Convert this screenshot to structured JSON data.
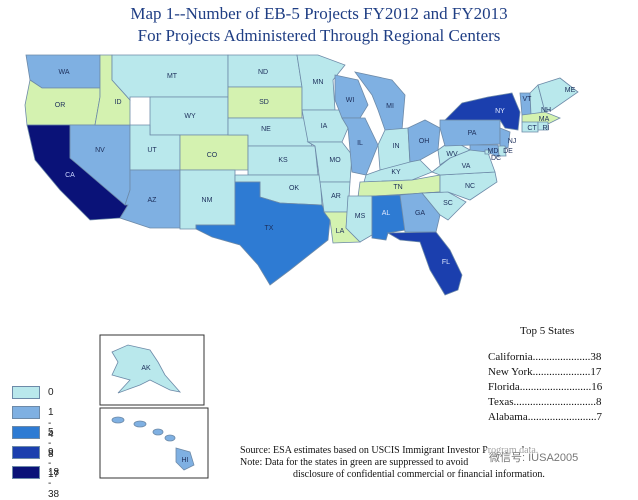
{
  "title_line1": "Map 1--Number of EB-5 Projects FY2012 and FY2013",
  "title_line2": "For Projects Administered Through Regional Centers",
  "legend": [
    {
      "label": "0",
      "color": "#b9e8ec"
    },
    {
      "label": "1 - 4",
      "color": "#7fb0e2"
    },
    {
      "label": "5 - 8",
      "color": "#2e7bd3"
    },
    {
      "label": "9 - 17",
      "color": "#1b3fae"
    },
    {
      "label": "18 - 38",
      "color": "#0a1278"
    }
  ],
  "suppressed_color": "#d4f2b0",
  "top5": {
    "header": "Top 5 States",
    "rows": [
      "California.....................38",
      "New York.....................17",
      "Florida..........................16",
      "Texas..............................8",
      "Alabama.........................7"
    ]
  },
  "source_line": "Source:  ESA estimates based on USCIS Immigrant Investor Program  data.",
  "note_line": "Note:     Data for the states in green are suppressed to avoid",
  "note_line2": "disclosure of confidential commercial or financial information.",
  "watermark": "微信号: IUSA2005",
  "states": [
    {
      "abbr": "WA"
    },
    {
      "abbr": "OR"
    },
    {
      "abbr": "CA"
    },
    {
      "abbr": "NV"
    },
    {
      "abbr": "ID"
    },
    {
      "abbr": "MT"
    },
    {
      "abbr": "WY"
    },
    {
      "abbr": "UT"
    },
    {
      "abbr": "AZ"
    },
    {
      "abbr": "CO"
    },
    {
      "abbr": "NM"
    },
    {
      "abbr": "ND"
    },
    {
      "abbr": "SD"
    },
    {
      "abbr": "NE"
    },
    {
      "abbr": "KS"
    },
    {
      "abbr": "OK"
    },
    {
      "abbr": "TX"
    },
    {
      "abbr": "MN"
    },
    {
      "abbr": "IA"
    },
    {
      "abbr": "MO"
    },
    {
      "abbr": "AR"
    },
    {
      "abbr": "LA"
    },
    {
      "abbr": "WI"
    },
    {
      "abbr": "IL"
    },
    {
      "abbr": "MI"
    },
    {
      "abbr": "IN"
    },
    {
      "abbr": "OH"
    },
    {
      "abbr": "KY"
    },
    {
      "abbr": "TN"
    },
    {
      "abbr": "MS"
    },
    {
      "abbr": "AL"
    },
    {
      "abbr": "GA"
    },
    {
      "abbr": "FL"
    },
    {
      "abbr": "SC"
    },
    {
      "abbr": "NC"
    },
    {
      "abbr": "VA"
    },
    {
      "abbr": "WV"
    },
    {
      "abbr": "PA"
    },
    {
      "abbr": "NY"
    },
    {
      "abbr": "VT"
    },
    {
      "abbr": "NH"
    },
    {
      "abbr": "ME"
    },
    {
      "abbr": "MA"
    },
    {
      "abbr": "CT"
    },
    {
      "abbr": "RI"
    },
    {
      "abbr": "NJ"
    },
    {
      "abbr": "DE"
    },
    {
      "abbr": "MD"
    },
    {
      "abbr": "DC"
    },
    {
      "abbr": "AK"
    },
    {
      "abbr": "HI"
    }
  ]
}
